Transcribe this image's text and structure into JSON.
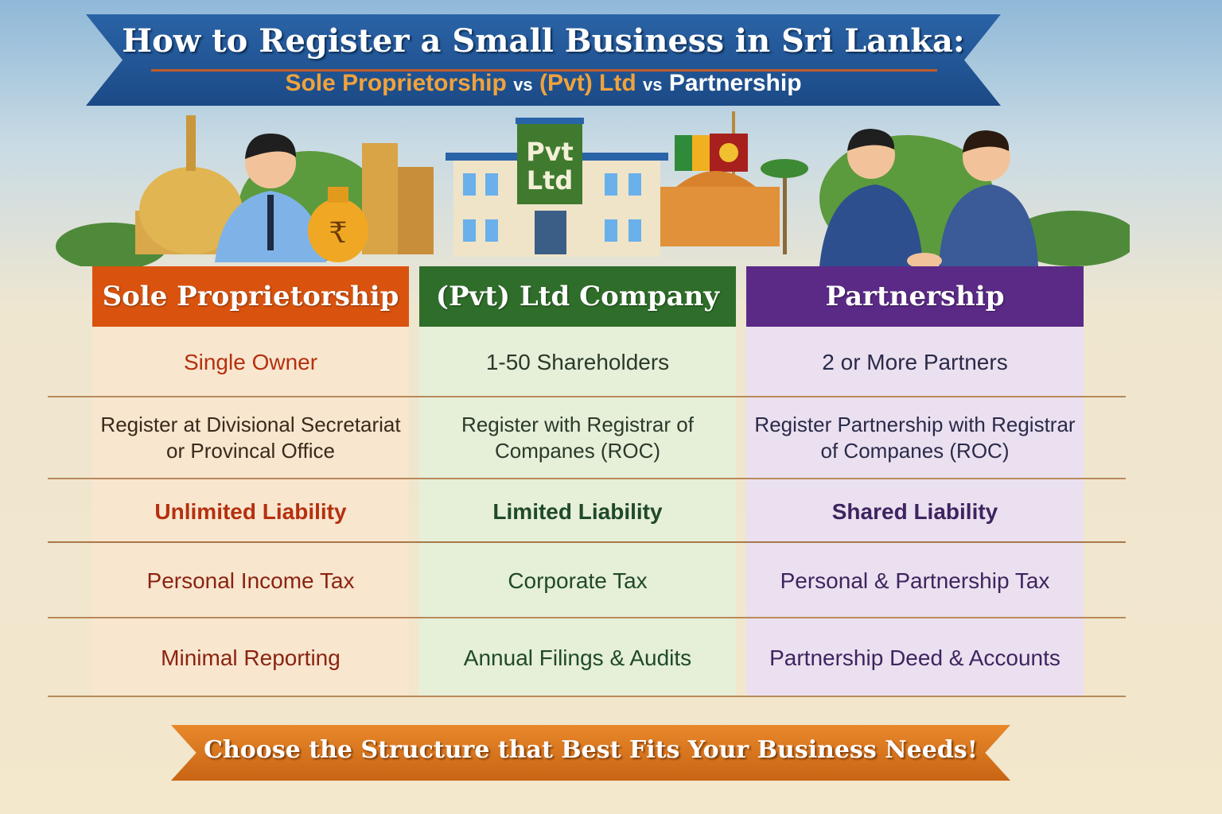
{
  "header": {
    "title": "How to Register a Small Business in Sri Lanka:",
    "subtitle_parts": [
      "Sole Proprietorship",
      "vs",
      "(Pvt) Ltd",
      "vs",
      "Partnership"
    ]
  },
  "illustration": {
    "building_sign_line1": "Pvt",
    "building_sign_line2": "Ltd"
  },
  "columns": [
    {
      "heading": "Sole Proprietorship",
      "header_color": "#d9530f",
      "body_color": "#f8e6cf",
      "text_color": "#b5300f",
      "rows": [
        "Single Owner",
        "Register at Divisional Secretariat or Provincal Office",
        "Unlimited Liability",
        "Personal Income Tax",
        "Minimal Reporting"
      ]
    },
    {
      "heading": "(Pvt) Ltd Company",
      "header_color": "#2f6e2a",
      "body_color": "#e6efd8",
      "text_color": "#1f4a2a",
      "rows": [
        "1-50 Shareholders",
        "Register with Registrar of Companes (ROC)",
        "Limited Liability",
        "Corporate Tax",
        "Annual Filings & Audits"
      ]
    },
    {
      "heading": "Partnership",
      "header_color": "#5b2a86",
      "body_color": "#ebe0ef",
      "text_color": "#3e2460",
      "rows": [
        "2 or More Partners",
        "Register Partnership with Registrar of Companes (ROC)",
        "Shared Liability",
        "Personal & Partnership Tax",
        "Partnership Deed & Accounts"
      ]
    }
  ],
  "footer": {
    "text": "Choose the Structure that Best Fits Your Business Needs!"
  }
}
